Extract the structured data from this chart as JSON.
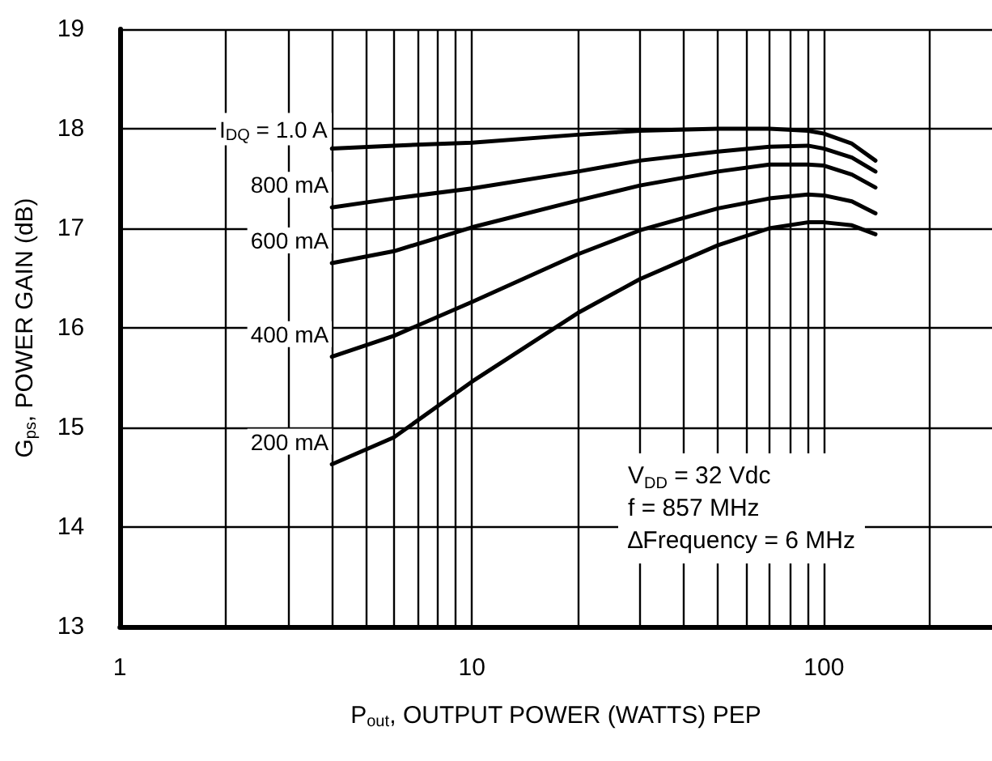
{
  "chart_data": {
    "type": "line",
    "xlabel": "P$_{out}$, OUTPUT POWER (WATTS) PEP",
    "ylabel": "G$_{ps}$, POWER GAIN (dB)",
    "x": [
      4,
      6,
      10,
      20,
      30,
      50,
      70,
      90,
      100,
      120,
      140
    ],
    "series": [
      {
        "name": "I$_{DQ}$ = 1.0 A",
        "color": "#000000",
        "values": [
          17.8,
          17.83,
          17.86,
          17.94,
          17.98,
          18.0,
          18.0,
          17.98,
          17.95,
          17.85,
          17.68
        ]
      },
      {
        "name": "800 mA",
        "color": "#000000",
        "values": [
          17.21,
          17.3,
          17.4,
          17.57,
          17.68,
          17.77,
          17.82,
          17.83,
          17.8,
          17.71,
          17.57
        ]
      },
      {
        "name": "600 mA",
        "color": "#000000",
        "values": [
          16.65,
          16.77,
          17.01,
          17.28,
          17.43,
          17.57,
          17.64,
          17.64,
          17.63,
          17.54,
          17.41
        ]
      },
      {
        "name": "400 mA",
        "color": "#000000",
        "values": [
          15.71,
          15.92,
          16.26,
          16.74,
          16.98,
          17.2,
          17.3,
          17.34,
          17.33,
          17.27,
          17.15
        ]
      },
      {
        "name": "200 mA",
        "color": "#000000",
        "values": [
          14.63,
          14.9,
          15.46,
          16.15,
          16.49,
          16.83,
          17.0,
          17.06,
          17.06,
          17.03,
          16.94
        ]
      }
    ],
    "log": "x",
    "xlim": [
      1,
      300
    ],
    "xticks": [
      1,
      {
        "value": 2,
        "label": null
      },
      {
        "value": 3,
        "label": null
      },
      {
        "value": 4,
        "label": null
      },
      {
        "value": 5,
        "label": null
      },
      {
        "value": 6,
        "label": null
      },
      {
        "value": 7,
        "label": null
      },
      {
        "value": 8,
        "label": null
      },
      {
        "value": 9,
        "label": null
      },
      10,
      {
        "value": 20,
        "label": null
      },
      {
        "value": 30,
        "label": null
      },
      {
        "value": 40,
        "label": null
      },
      {
        "value": 50,
        "label": null
      },
      {
        "value": 60,
        "label": null
      },
      {
        "value": 70,
        "label": null
      },
      {
        "value": 80,
        "label": null
      },
      {
        "value": 90,
        "label": null
      },
      100,
      {
        "value": 200,
        "label": null
      }
    ],
    "ylim": [
      13,
      19
    ],
    "yticks": [
      13,
      14,
      15,
      16,
      17,
      18,
      19
    ],
    "grid": true,
    "legend": false,
    "marker": "none",
    "line_style": "solid",
    "annotations": [
      "V$_{DD}$ = 32 Vdc\nf = 857 MHz\n∆Frequency = 6 MHz"
    ]
  }
}
